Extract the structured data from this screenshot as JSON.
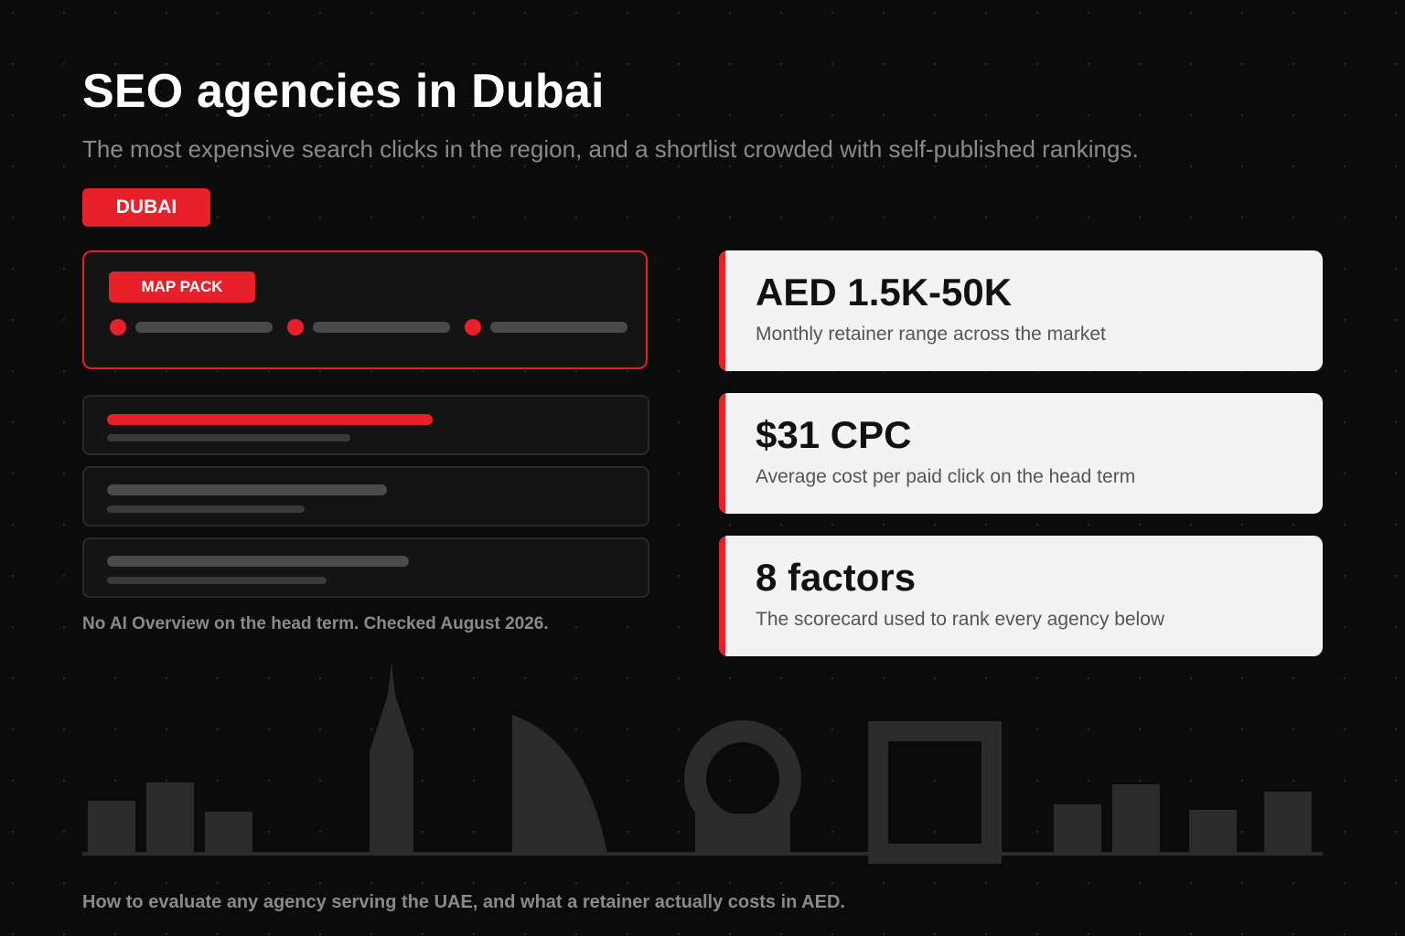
{
  "header": {
    "title": "SEO agencies in Dubai",
    "subtitle": "The most expensive search clicks in the region, and a shortlist crowded with self-published rankings.",
    "city_badge": "DUBAI"
  },
  "serp": {
    "map_pack_label": "MAP PACK",
    "note": "No AI Overview on the head term. Checked August 2026."
  },
  "stats": [
    {
      "value": "AED 1.5K-50K",
      "label": "Monthly retainer range across the market"
    },
    {
      "value": "$31 CPC",
      "label": "Average cost per paid click on the head term"
    },
    {
      "value": "8 factors",
      "label": "The scorecard used to rank every agency below"
    }
  ],
  "footer": {
    "text": "How to evaluate any agency serving the UAE, and what a retainer actually costs in AED."
  },
  "colors": {
    "accent": "#e8202a",
    "background": "#0b0b0b",
    "card": "#f3f3f3",
    "muted_text": "#8a8a8a"
  }
}
